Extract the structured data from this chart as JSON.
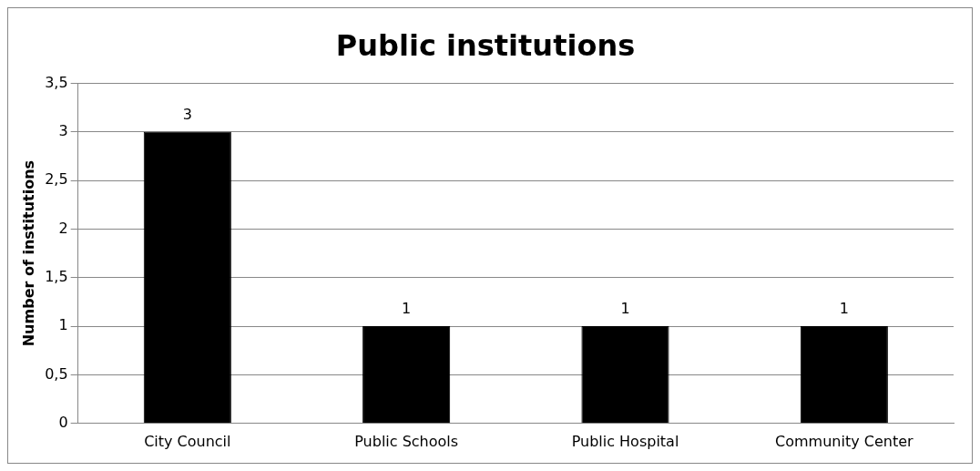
{
  "chart_data": {
    "type": "bar",
    "title": "Public institutions",
    "ylabel": "Number of institutions",
    "categories": [
      "City Council",
      "Public Schools",
      "Public Hospital",
      "Community Center"
    ],
    "values": [
      3,
      1,
      1,
      1
    ],
    "color": "#000000",
    "ylim": [
      0,
      3.5
    ],
    "yticks": [
      0,
      {
        "value": 0.5,
        "label": "0,5"
      },
      1,
      {
        "value": 1.5,
        "label": "1,5"
      },
      2,
      {
        "value": 2.5,
        "label": "2,5"
      },
      3,
      {
        "value": 3.5,
        "label": "3,5"
      }
    ],
    "grid": "y",
    "data_labels": true,
    "legend": false
  }
}
